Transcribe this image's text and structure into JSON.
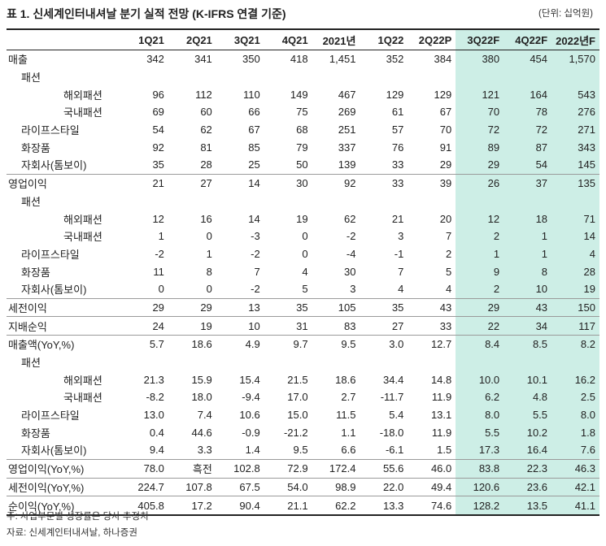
{
  "title": "표 1. 신세계인터내셔날 분기 실적 전망 (K-IFRS 연결 기준)",
  "unit": "(단위: 십억원)",
  "columns": [
    "1Q21",
    "2Q21",
    "3Q21",
    "4Q21",
    "2021년",
    "1Q22",
    "2Q22P",
    "3Q22F",
    "4Q22F",
    "2022년F"
  ],
  "forecast_color": "#cdeee6",
  "rows": [
    {
      "label": "매출",
      "level": 0,
      "sep": false,
      "values": [
        "342",
        "341",
        "350",
        "418",
        "1,451",
        "352",
        "384",
        "380",
        "454",
        "1,570"
      ]
    },
    {
      "label": "패션",
      "level": 1,
      "sep": false,
      "values": [
        "",
        "",
        "",
        "",
        "",
        "",
        "",
        "",
        "",
        ""
      ]
    },
    {
      "label": "해외패션",
      "level": 2,
      "sep": false,
      "values": [
        "96",
        "112",
        "110",
        "149",
        "467",
        "129",
        "129",
        "121",
        "164",
        "543"
      ]
    },
    {
      "label": "국내패션",
      "level": 2,
      "sep": false,
      "values": [
        "69",
        "60",
        "66",
        "75",
        "269",
        "61",
        "67",
        "70",
        "78",
        "276"
      ]
    },
    {
      "label": "라이프스타일",
      "level": 1,
      "sep": false,
      "values": [
        "54",
        "62",
        "67",
        "68",
        "251",
        "57",
        "70",
        "72",
        "72",
        "271"
      ]
    },
    {
      "label": "화장품",
      "level": 1,
      "sep": false,
      "values": [
        "92",
        "81",
        "85",
        "79",
        "337",
        "76",
        "91",
        "89",
        "87",
        "343"
      ]
    },
    {
      "label": "자회사(톰보이)",
      "level": 1,
      "sep": false,
      "values": [
        "35",
        "28",
        "25",
        "50",
        "139",
        "33",
        "29",
        "29",
        "54",
        "145"
      ]
    },
    {
      "label": "영업이익",
      "level": 0,
      "sep": true,
      "values": [
        "21",
        "27",
        "14",
        "30",
        "92",
        "33",
        "39",
        "26",
        "37",
        "135"
      ]
    },
    {
      "label": "패션",
      "level": 1,
      "sep": false,
      "values": [
        "",
        "",
        "",
        "",
        "",
        "",
        "",
        "",
        "",
        ""
      ]
    },
    {
      "label": "해외패션",
      "level": 2,
      "sep": false,
      "values": [
        "12",
        "16",
        "14",
        "19",
        "62",
        "21",
        "20",
        "12",
        "18",
        "71"
      ]
    },
    {
      "label": "국내패션",
      "level": 2,
      "sep": false,
      "values": [
        "1",
        "0",
        "-3",
        "0",
        "-2",
        "3",
        "7",
        "2",
        "1",
        "14"
      ]
    },
    {
      "label": "라이프스타일",
      "level": 1,
      "sep": false,
      "values": [
        "-2",
        "1",
        "-2",
        "0",
        "-4",
        "-1",
        "2",
        "1",
        "1",
        "4"
      ]
    },
    {
      "label": "화장품",
      "level": 1,
      "sep": false,
      "values": [
        "11",
        "8",
        "7",
        "4",
        "30",
        "7",
        "5",
        "9",
        "8",
        "28"
      ]
    },
    {
      "label": "자회사(톰보이)",
      "level": 1,
      "sep": false,
      "values": [
        "0",
        "0",
        "-2",
        "5",
        "3",
        "4",
        "4",
        "2",
        "10",
        "19"
      ]
    },
    {
      "label": "세전이익",
      "level": 0,
      "sep": true,
      "values": [
        "29",
        "29",
        "13",
        "35",
        "105",
        "35",
        "43",
        "29",
        "43",
        "150"
      ]
    },
    {
      "label": "지배순익",
      "level": 0,
      "sep": true,
      "values": [
        "24",
        "19",
        "10",
        "31",
        "83",
        "27",
        "33",
        "22",
        "34",
        "117"
      ]
    },
    {
      "label": "매출액(YoY,%)",
      "level": 0,
      "sep": true,
      "values": [
        "5.7",
        "18.6",
        "4.9",
        "9.7",
        "9.5",
        "3.0",
        "12.7",
        "8.4",
        "8.5",
        "8.2"
      ]
    },
    {
      "label": "패션",
      "level": 1,
      "sep": false,
      "values": [
        "",
        "",
        "",
        "",
        "",
        "",
        "",
        "",
        "",
        ""
      ]
    },
    {
      "label": "해외패션",
      "level": 2,
      "sep": false,
      "values": [
        "21.3",
        "15.9",
        "15.4",
        "21.5",
        "18.6",
        "34.4",
        "14.8",
        "10.0",
        "10.1",
        "16.2"
      ]
    },
    {
      "label": "국내패션",
      "level": 2,
      "sep": false,
      "values": [
        "-8.2",
        "18.0",
        "-9.4",
        "17.0",
        "2.7",
        "-11.7",
        "11.9",
        "6.2",
        "4.8",
        "2.5"
      ]
    },
    {
      "label": "라이프스타일",
      "level": 1,
      "sep": false,
      "values": [
        "13.0",
        "7.4",
        "10.6",
        "15.0",
        "11.5",
        "5.4",
        "13.1",
        "8.0",
        "5.5",
        "8.0"
      ]
    },
    {
      "label": "화장품",
      "level": 1,
      "sep": false,
      "values": [
        "0.4",
        "44.6",
        "-0.9",
        "-21.2",
        "1.1",
        "-18.0",
        "11.9",
        "5.5",
        "10.2",
        "1.8"
      ]
    },
    {
      "label": "자회사(톰보이)",
      "level": 1,
      "sep": false,
      "values": [
        "9.4",
        "3.3",
        "1.4",
        "9.5",
        "6.6",
        "-6.1",
        "1.5",
        "17.3",
        "16.4",
        "7.6"
      ]
    },
    {
      "label": "영업이익(YoY,%)",
      "level": 0,
      "sep": true,
      "values": [
        "78.0",
        "흑전",
        "102.8",
        "72.9",
        "172.4",
        "55.6",
        "46.0",
        "83.8",
        "22.3",
        "46.3"
      ]
    },
    {
      "label": "세전이익(YoY,%)",
      "level": 0,
      "sep": true,
      "values": [
        "224.7",
        "107.8",
        "67.5",
        "54.0",
        "98.9",
        "22.0",
        "49.4",
        "120.6",
        "23.6",
        "42.1"
      ]
    },
    {
      "label": "순이익(YoY,%)",
      "level": 0,
      "sep": true,
      "values": [
        "405.8",
        "17.2",
        "90.4",
        "21.1",
        "62.2",
        "13.3",
        "74.6",
        "128.2",
        "13.5",
        "41.1"
      ]
    }
  ],
  "notes": [
    "주: 사업부문별 성장률은 당사 추정치",
    "자료: 신세계인터내셔날, 하나증권"
  ]
}
